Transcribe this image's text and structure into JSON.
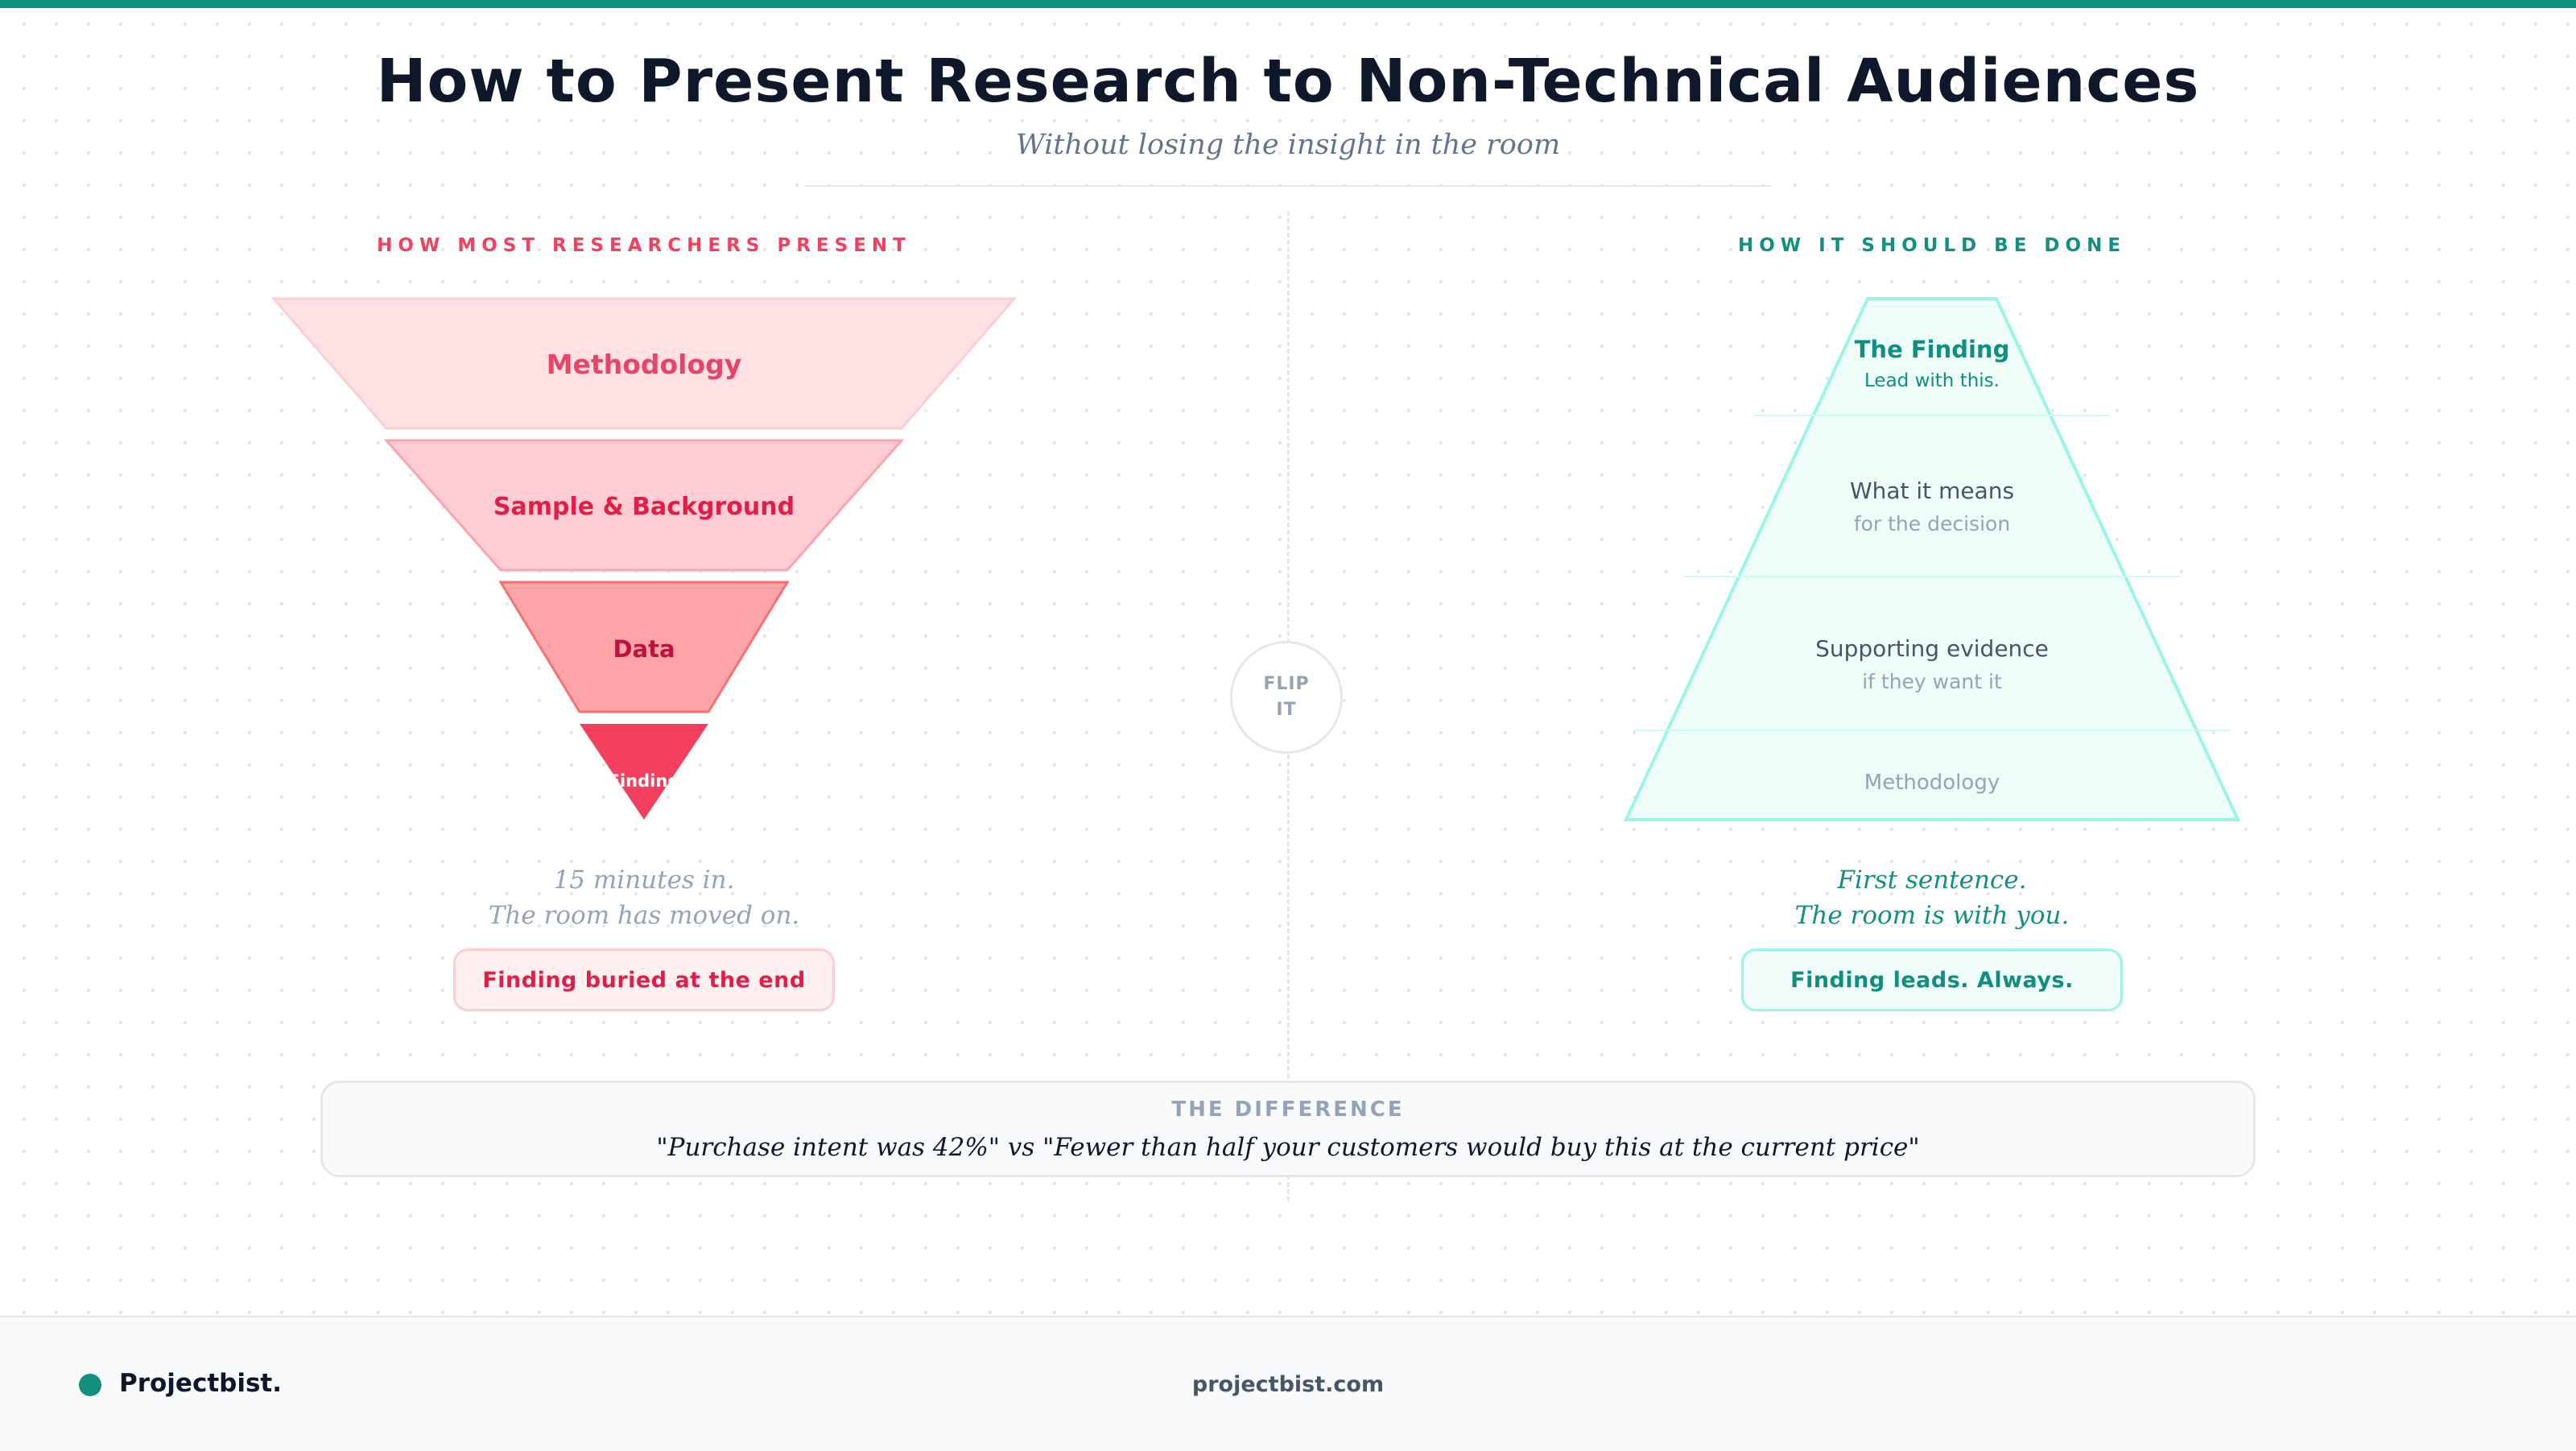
{
  "header": {
    "title": "How to Present Research to Non-Technical Audiences",
    "subtitle": "Without losing the insight in the room"
  },
  "left": {
    "label": "HOW MOST RESEARCHERS PRESENT",
    "layers": [
      {
        "name": "Methodology"
      },
      {
        "name": "Sample & Background"
      },
      {
        "name": "Data"
      },
      {
        "name": "Finding"
      }
    ],
    "caption_line1": "15 minutes in.",
    "caption_line2": "The room has moved on.",
    "pill": "Finding buried at the end"
  },
  "center": {
    "flip_line1": "FLIP",
    "flip_line2": "IT"
  },
  "right": {
    "label": "HOW IT SHOULD BE DONE",
    "layers": [
      {
        "name": "The Finding",
        "sub": "Lead with this."
      },
      {
        "name": "What it means",
        "sub": "for the decision"
      },
      {
        "name": "Supporting evidence",
        "sub": "if they want it"
      },
      {
        "name": "Methodology"
      }
    ],
    "caption_line1": "First sentence.",
    "caption_line2": "The room is with you.",
    "pill": "Finding leads. Always."
  },
  "difference": {
    "title": "THE DIFFERENCE",
    "quote": "\"Purchase intent was 42%\" vs \"Fewer than half your customers would buy this at the current price\""
  },
  "footer": {
    "brand": "Projectbist.",
    "site": "projectbist.com"
  },
  "colors": {
    "accent": "#11907f",
    "warning": "#f43f5e"
  }
}
